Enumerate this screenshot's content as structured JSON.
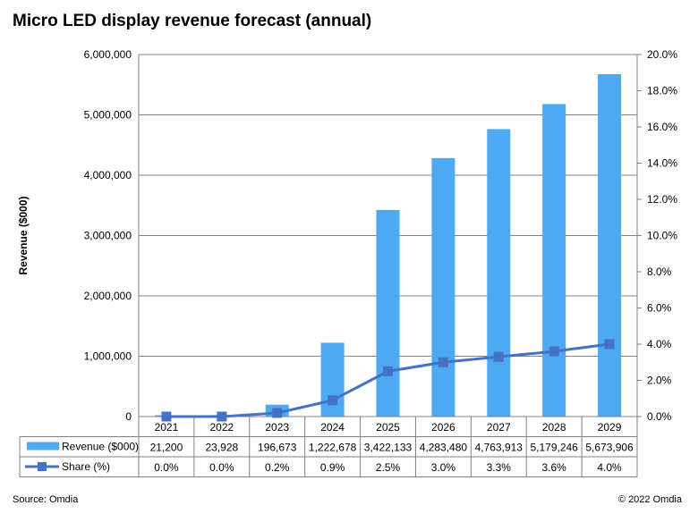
{
  "title": "Micro LED display revenue forecast (annual)",
  "footer": {
    "source": "Source: Omdia",
    "copyright": "© 2022 Omdia"
  },
  "colors": {
    "bar": "#4DA9F2",
    "line": "#4472C4",
    "grid": "#808080"
  },
  "chart_data": {
    "type": "bar",
    "categories": [
      "2021",
      "2022",
      "2023",
      "2024",
      "2025",
      "2026",
      "2027",
      "2028",
      "2029"
    ],
    "series": [
      {
        "name": "Revenue ($000)",
        "type": "bar",
        "axis": "left",
        "values": [
          21200,
          23928,
          196673,
          1222678,
          3422133,
          4283480,
          4763913,
          5179246,
          5673906
        ],
        "labels": [
          "21,200",
          "23,928",
          "196,673",
          "1,222,678",
          "3,422,133",
          "4,283,480",
          "4,763,913",
          "5,179,246",
          "5,673,906"
        ]
      },
      {
        "name": "Share (%)",
        "type": "line",
        "axis": "right",
        "values": [
          0.0,
          0.0,
          0.2,
          0.9,
          2.5,
          3.0,
          3.3,
          3.6,
          4.0
        ],
        "labels": [
          "0.0%",
          "0.0%",
          "0.2%",
          "0.9%",
          "2.5%",
          "3.0%",
          "3.3%",
          "3.6%",
          "4.0%"
        ]
      }
    ],
    "ylabel": "Revenue ($000)",
    "ylim": [
      0,
      6000000
    ],
    "yticks": [
      "0",
      "1,000,000",
      "2,000,000",
      "3,000,000",
      "4,000,000",
      "5,000,000",
      "6,000,000"
    ],
    "y2lim": [
      0,
      20
    ],
    "y2ticks": [
      "0.0%",
      "2.0%",
      "4.0%",
      "6.0%",
      "8.0%",
      "10.0%",
      "12.0%",
      "14.0%",
      "16.0%",
      "18.0%",
      "20.0%"
    ],
    "grid": true,
    "legend": "data-table"
  }
}
